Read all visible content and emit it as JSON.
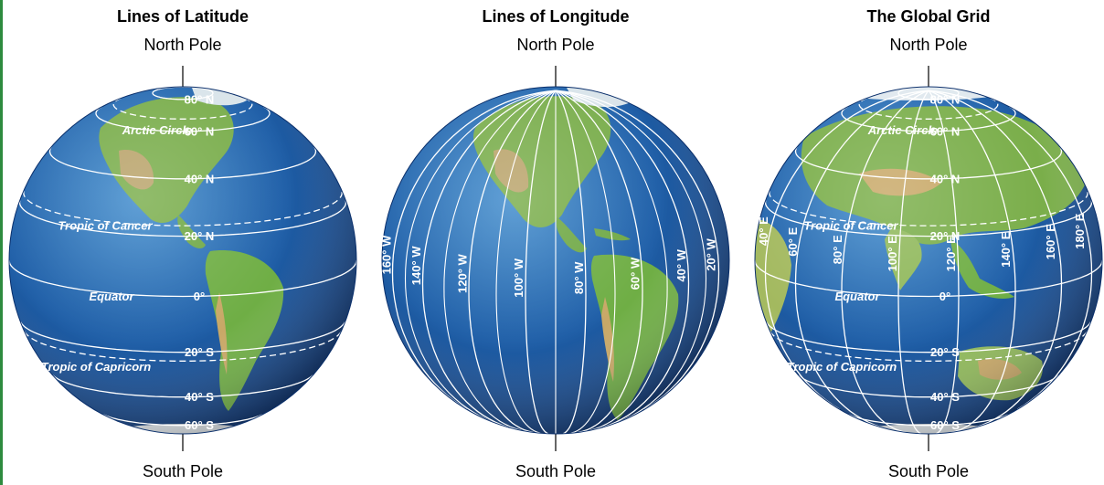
{
  "colors": {
    "ocean_deep": "#0d3f86",
    "ocean": "#1f64ad",
    "ocean_light": "#3b86c8",
    "land_green": "#6fae45",
    "land_light": "#a8c96a",
    "land_desert": "#c8a867",
    "ice": "#e8eef2",
    "grid_line": "#ffffff",
    "accent_strip": "#2e8b3f"
  },
  "panels": [
    {
      "id": "latitude",
      "title": "Lines of Latitude",
      "north_label": "North Pole",
      "south_label": "South Pole",
      "latitudes": [
        {
          "label": "80° N",
          "value": 80
        },
        {
          "label": "60° N",
          "value": 60
        },
        {
          "label": "40° N",
          "value": 40
        },
        {
          "label": "20° N",
          "value": 20
        },
        {
          "label": "0°",
          "value": 0
        },
        {
          "label": "20° S",
          "value": -20
        },
        {
          "label": "40° S",
          "value": -40
        },
        {
          "label": "60° S",
          "value": -60
        }
      ],
      "special_lines": [
        {
          "label": "Arctic Circle",
          "value": 66.5
        },
        {
          "label": "Tropic of Cancer",
          "value": 23.5
        },
        {
          "label": "Equator",
          "value": 0
        },
        {
          "label": "Tropic of Capricorn",
          "value": -23.5
        }
      ]
    },
    {
      "id": "longitude",
      "title": "Lines of Longitude",
      "north_label": "North Pole",
      "south_label": "South Pole",
      "longitudes": [
        {
          "label": "160° W",
          "value": -160
        },
        {
          "label": "140° W",
          "value": -140
        },
        {
          "label": "120° W",
          "value": -120
        },
        {
          "label": "100° W",
          "value": -100
        },
        {
          "label": "80° W",
          "value": -80
        },
        {
          "label": "60° W",
          "value": -60
        },
        {
          "label": "40° W",
          "value": -40
        },
        {
          "label": "20° W",
          "value": -20
        }
      ]
    },
    {
      "id": "grid",
      "title": "The Global Grid",
      "north_label": "North Pole",
      "south_label": "South Pole",
      "latitudes": [
        {
          "label": "80° N",
          "value": 80
        },
        {
          "label": "60° N",
          "value": 60
        },
        {
          "label": "40° N",
          "value": 40
        },
        {
          "label": "20° N",
          "value": 20
        },
        {
          "label": "0°",
          "value": 0
        },
        {
          "label": "20° S",
          "value": -20
        },
        {
          "label": "40° S",
          "value": -40
        },
        {
          "label": "60° S",
          "value": -60
        }
      ],
      "special_lines": [
        {
          "label": "Arctic Circle",
          "value": 66.5
        },
        {
          "label": "Tropic of Cancer",
          "value": 23.5
        },
        {
          "label": "Equator",
          "value": 0
        },
        {
          "label": "Tropic of Capricorn",
          "value": -23.5
        }
      ],
      "longitudes": [
        {
          "label": "40° E",
          "value": 40
        },
        {
          "label": "60° E",
          "value": 60
        },
        {
          "label": "80° E",
          "value": 80
        },
        {
          "label": "100° E",
          "value": 100
        },
        {
          "label": "120° E",
          "value": 120
        },
        {
          "label": "140° E",
          "value": 140
        },
        {
          "label": "160° E",
          "value": 160
        },
        {
          "label": "180° E",
          "value": 180
        }
      ]
    }
  ]
}
